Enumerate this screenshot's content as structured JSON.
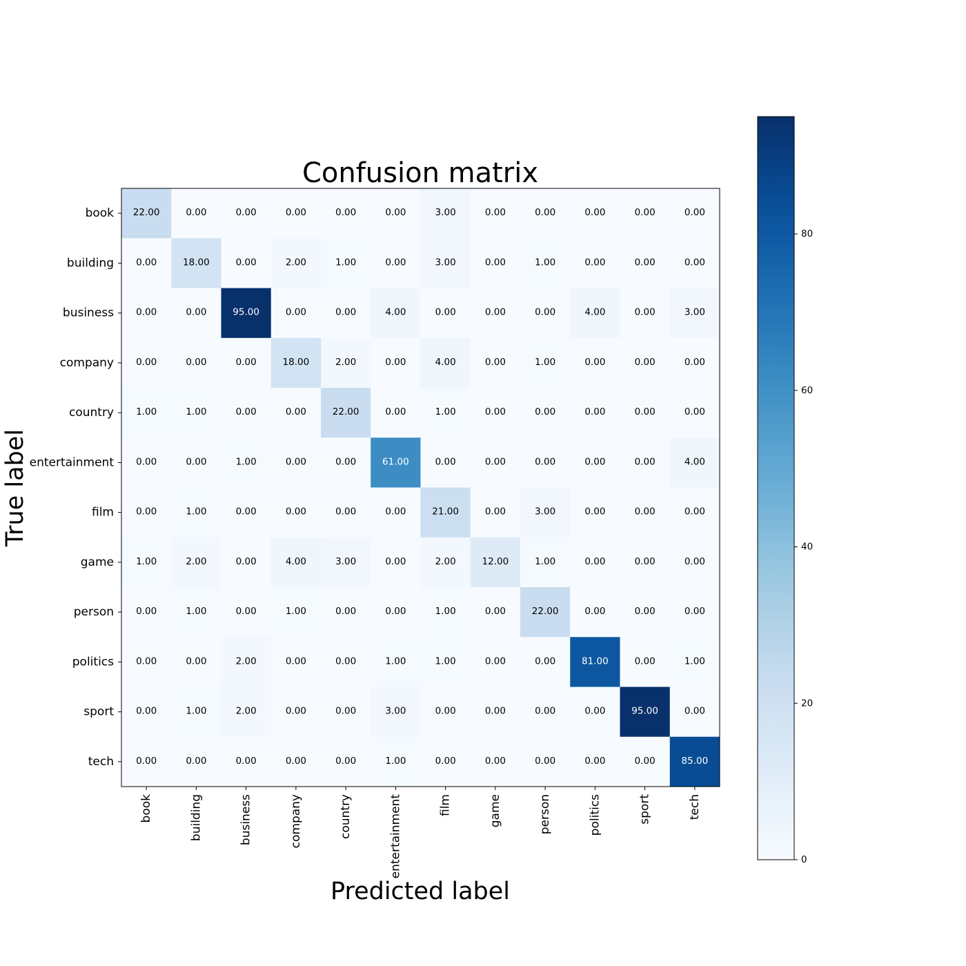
{
  "chart_data": {
    "type": "heatmap",
    "title": "Confusion matrix",
    "xlabel": "Predicted label",
    "ylabel": "True label",
    "labels": [
      "book",
      "building",
      "business",
      "company",
      "country",
      "entertainment",
      "film",
      "game",
      "person",
      "politics",
      "sport",
      "tech"
    ],
    "matrix": [
      [
        22,
        0,
        0,
        0,
        0,
        0,
        3,
        0,
        0,
        0,
        0,
        0
      ],
      [
        0,
        18,
        0,
        2,
        1,
        0,
        3,
        0,
        1,
        0,
        0,
        0
      ],
      [
        0,
        0,
        95,
        0,
        0,
        4,
        0,
        0,
        0,
        4,
        0,
        3
      ],
      [
        0,
        0,
        0,
        18,
        2,
        0,
        4,
        0,
        1,
        0,
        0,
        0
      ],
      [
        1,
        1,
        0,
        0,
        22,
        0,
        1,
        0,
        0,
        0,
        0,
        0
      ],
      [
        0,
        0,
        1,
        0,
        0,
        61,
        0,
        0,
        0,
        0,
        0,
        4
      ],
      [
        0,
        1,
        0,
        0,
        0,
        0,
        21,
        0,
        3,
        0,
        0,
        0
      ],
      [
        1,
        2,
        0,
        4,
        3,
        0,
        2,
        12,
        1,
        0,
        0,
        0
      ],
      [
        0,
        1,
        0,
        1,
        0,
        0,
        1,
        0,
        22,
        0,
        0,
        0
      ],
      [
        0,
        0,
        2,
        0,
        0,
        1,
        1,
        0,
        0,
        81,
        0,
        1
      ],
      [
        0,
        1,
        2,
        0,
        0,
        3,
        0,
        0,
        0,
        0,
        95,
        0
      ],
      [
        0,
        0,
        0,
        0,
        0,
        1,
        0,
        0,
        0,
        0,
        0,
        85
      ]
    ],
    "value_format_decimals": 2,
    "colormap": "Blues",
    "colorbar": {
      "min": 0,
      "max": 95,
      "ticks": [
        0,
        20,
        40,
        60,
        80
      ]
    },
    "grid": false
  }
}
